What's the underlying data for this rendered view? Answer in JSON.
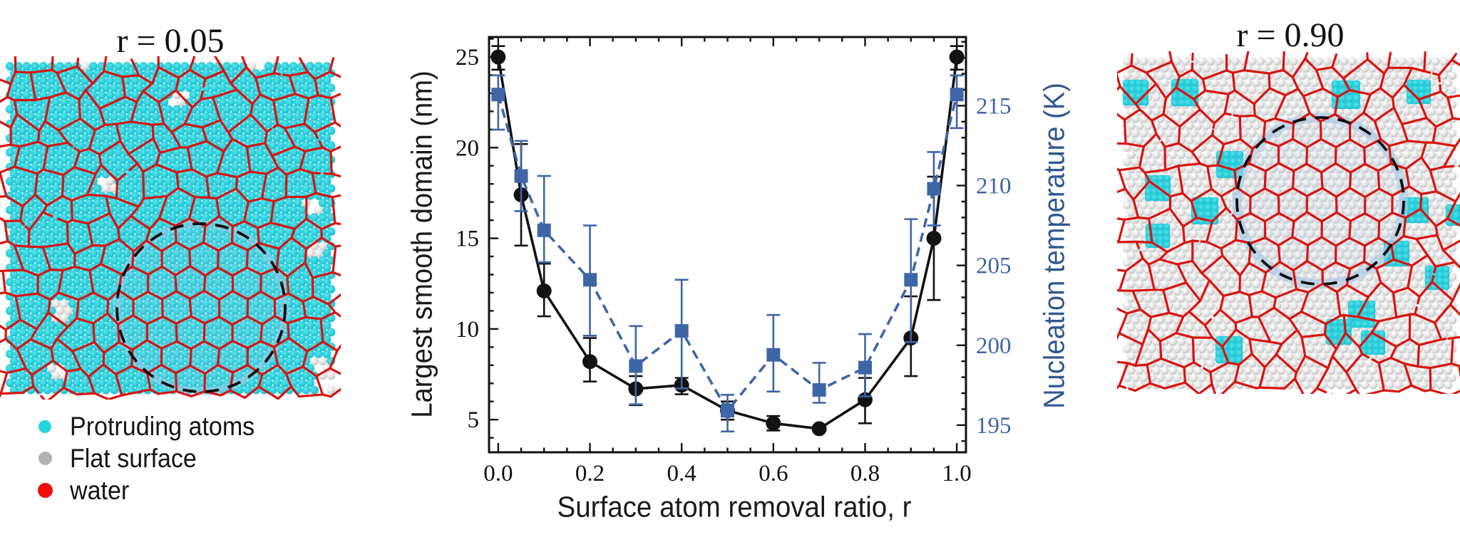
{
  "figure": {
    "background": "#ffffff",
    "panels": {
      "left": {
        "title": "r = 0.05",
        "atom_type": "protruding",
        "legend": [
          {
            "label": "Protruding atoms",
            "color": "#25d5dc",
            "dot_size": 18
          },
          {
            "label": "Flat surface",
            "color": "#b2b2b2",
            "dot_size": 19
          },
          {
            "label": "water",
            "color": "#f50b0b",
            "dot_size": 21
          }
        ]
      },
      "right": {
        "title": "r = 0.90",
        "atom_type": "flat"
      }
    },
    "colors": {
      "water_network": "#d81410",
      "protruding_atom": "#2fd2de",
      "flat_atom": "#d9d9d9",
      "nucleus_halo": "#a8c8e8",
      "nucleus_dash": "#0d0d0d"
    }
  },
  "chart_data": {
    "type": "line",
    "title": "",
    "xlabel": "Surface atom removal ratio, r",
    "ylabel_left": "Largest smooth domain (nm)",
    "ylabel_right": "Nucleation temperature (K)",
    "grid": false,
    "legend_position": "none",
    "xlim": [
      -0.02,
      1.02
    ],
    "ylim_left": [
      3.2,
      26.1
    ],
    "ylim_right": [
      193.3,
      219.3
    ],
    "x_ticks": [
      0.0,
      0.2,
      0.4,
      0.6,
      0.8,
      1.0
    ],
    "x_minor_step": 0.05,
    "y_ticks_left": [
      5,
      10,
      15,
      20,
      25
    ],
    "y_minor_step_left": 1,
    "y_ticks_right": [
      195,
      200,
      205,
      210,
      215
    ],
    "y_minor_step_right": 1,
    "x": [
      0.0,
      0.05,
      0.1,
      0.2,
      0.3,
      0.4,
      0.5,
      0.6,
      0.7,
      0.8,
      0.9,
      0.95,
      1.0
    ],
    "series": [
      {
        "name": "Largest smooth domain (nm)",
        "axis": "left",
        "color": "#121212",
        "marker": "circle",
        "linestyle": "solid",
        "values": [
          25.0,
          17.4,
          12.1,
          8.2,
          6.7,
          6.9,
          5.5,
          4.8,
          4.5,
          6.1,
          9.5,
          15.0,
          25.0
        ],
        "err_lo": [
          24.3,
          14.6,
          10.7,
          7.1,
          5.8,
          6.4,
          5.0,
          4.4,
          4.5,
          4.8,
          7.4,
          11.6,
          24.3
        ],
        "err_hi": [
          25.6,
          20.2,
          13.6,
          9.5,
          7.4,
          7.3,
          6.0,
          5.2,
          4.5,
          7.3,
          11.8,
          18.4,
          25.6
        ]
      },
      {
        "name": "Nucleation temperature (K)",
        "axis": "right",
        "color": "#3e66a7",
        "marker": "square",
        "linestyle": "dashed",
        "values": [
          215.7,
          210.6,
          207.2,
          204.1,
          198.7,
          200.9,
          195.9,
          199.4,
          197.2,
          198.6,
          204.1,
          209.8,
          215.7
        ],
        "err_lo": [
          213.5,
          208.4,
          205.2,
          200.6,
          196.3,
          197.3,
          194.6,
          197.1,
          196.4,
          196.8,
          200.2,
          207.5,
          213.6
        ],
        "err_hi": [
          216.9,
          212.8,
          210.6,
          207.5,
          201.2,
          204.1,
          196.9,
          201.9,
          198.9,
          200.7,
          207.9,
          212.1,
          216.9
        ]
      }
    ]
  }
}
